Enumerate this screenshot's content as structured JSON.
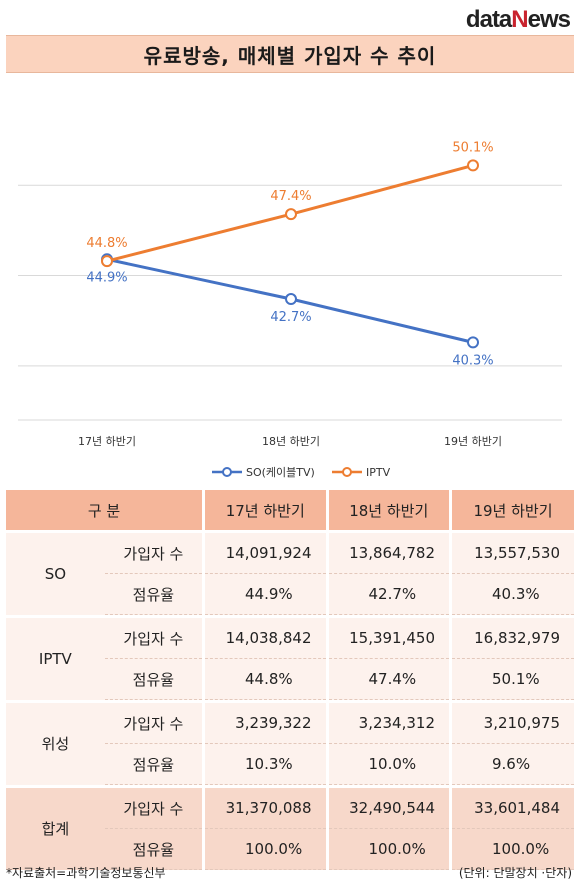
{
  "logo": {
    "text_d": "d",
    "text_ata": "ata",
    "text_n": "N",
    "text_ews": "ews"
  },
  "title": "유료방송, 매체별 가입자 수 추이",
  "chart_data": {
    "type": "line",
    "categories": [
      "17년 하반기",
      "18년 하반기",
      "19년 하반기"
    ],
    "series": [
      {
        "name": "SO(케이블TV)",
        "values": [
          44.9,
          42.7,
          40.3
        ],
        "labels": [
          "44.9%",
          "42.7%",
          "40.3%"
        ],
        "color": "#4472c4"
      },
      {
        "name": "IPTV",
        "values": [
          44.8,
          47.4,
          50.1
        ],
        "labels": [
          "44.8%",
          "47.4%",
          "50.1%"
        ],
        "color": "#ed7d31"
      }
    ],
    "ylim": [
      36,
      54
    ],
    "gridlines": [
      39,
      44,
      49
    ],
    "legend": "bottom",
    "grid": true
  },
  "table": {
    "headers": [
      "구 분",
      "17년 하반기",
      "18년 하반기",
      "19년 하반기"
    ],
    "groups": [
      {
        "name": "SO",
        "rows": [
          {
            "label": "가입자 수",
            "values": [
              "14,091,924",
              "13,864,782",
              "13,557,530"
            ]
          },
          {
            "label": "점유율",
            "values": [
              "44.9%",
              "42.7%",
              "40.3%"
            ]
          }
        ]
      },
      {
        "name": "IPTV",
        "rows": [
          {
            "label": "가입자 수",
            "values": [
              "14,038,842",
              "15,391,450",
              "16,832,979"
            ]
          },
          {
            "label": "점유율",
            "values": [
              "44.8%",
              "47.4%",
              "50.1%"
            ]
          }
        ]
      },
      {
        "name": "위성",
        "rows": [
          {
            "label": "가입자 수",
            "values": [
              "3,239,322",
              "3,234,312",
              "3,210,975"
            ]
          },
          {
            "label": "점유율",
            "values": [
              "10.3%",
              "10.0%",
              "9.6%"
            ]
          }
        ]
      },
      {
        "name": "합계",
        "rows": [
          {
            "label": "가입자 수",
            "values": [
              "31,370,088",
              "32,490,544",
              "33,601,484"
            ]
          },
          {
            "label": "점유율",
            "values": [
              "100.0%",
              "100.0%",
              "100.0%"
            ]
          }
        ]
      }
    ]
  },
  "footer": {
    "source": "*자료출처=과학기술정보통신부",
    "unit": "(단위: 단말장치 ·단자)"
  }
}
